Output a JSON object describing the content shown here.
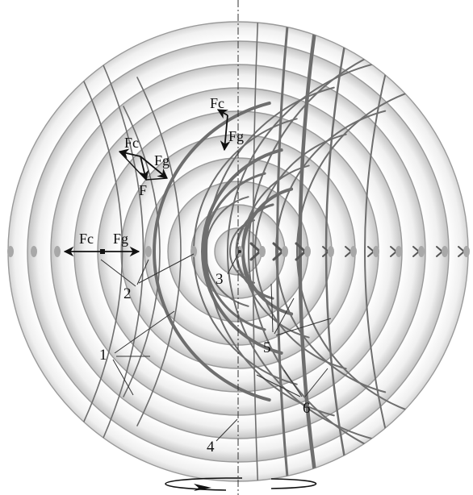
{
  "diagram": {
    "forces": {
      "centrifugal": "Fc",
      "gravity": "Fg",
      "resultant": "F"
    },
    "callouts": {
      "rings": "1",
      "nodes": "2",
      "center": "3",
      "axis": "4",
      "arc_lines": "5",
      "field_lines": "6"
    },
    "colors": {
      "ring_stroke": "#9a9a9a",
      "field_line": "#6e6e6e",
      "node_fill": "#a8a8a8",
      "arrow": "#111111"
    }
  }
}
